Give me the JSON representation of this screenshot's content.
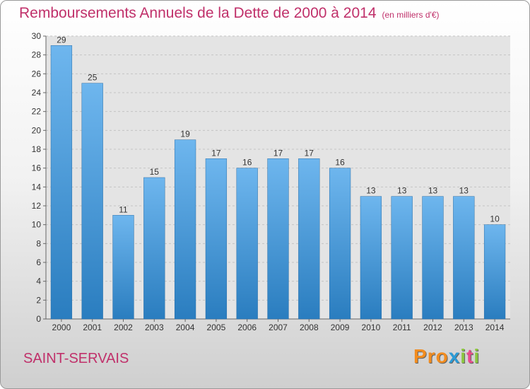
{
  "header": {
    "title": "Remboursements Annuels de la Dette de 2000 à 2014",
    "unit": "(en milliers d'€)"
  },
  "footer": {
    "commune": "SAINT-SERVAIS",
    "brand": "Proxiti"
  },
  "colors": {
    "title": "#c0306a",
    "bar_top": "#6eb6ee",
    "bar_bottom": "#2a7dbf",
    "brand_letters": [
      "#f28c1e",
      "#f28c1e",
      "#f28c1e",
      "#2b9bd6",
      "#8cc63f",
      "#e94b8a",
      "#8cc63f"
    ]
  },
  "chart_data": {
    "type": "bar",
    "title": "Remboursements Annuels de la Dette de 2000 à 2014",
    "categories": [
      "2000",
      "2001",
      "2002",
      "2003",
      "2004",
      "2005",
      "2006",
      "2007",
      "2008",
      "2009",
      "2010",
      "2011",
      "2012",
      "2013",
      "2014"
    ],
    "values": [
      29,
      25,
      11,
      15,
      19,
      17,
      16,
      17,
      17,
      16,
      13,
      13,
      13,
      13,
      10
    ],
    "ylim": [
      0,
      30
    ],
    "yticks": [
      0,
      2,
      4,
      6,
      8,
      10,
      12,
      14,
      16,
      18,
      20,
      22,
      24,
      26,
      28,
      30
    ],
    "grid": true
  }
}
